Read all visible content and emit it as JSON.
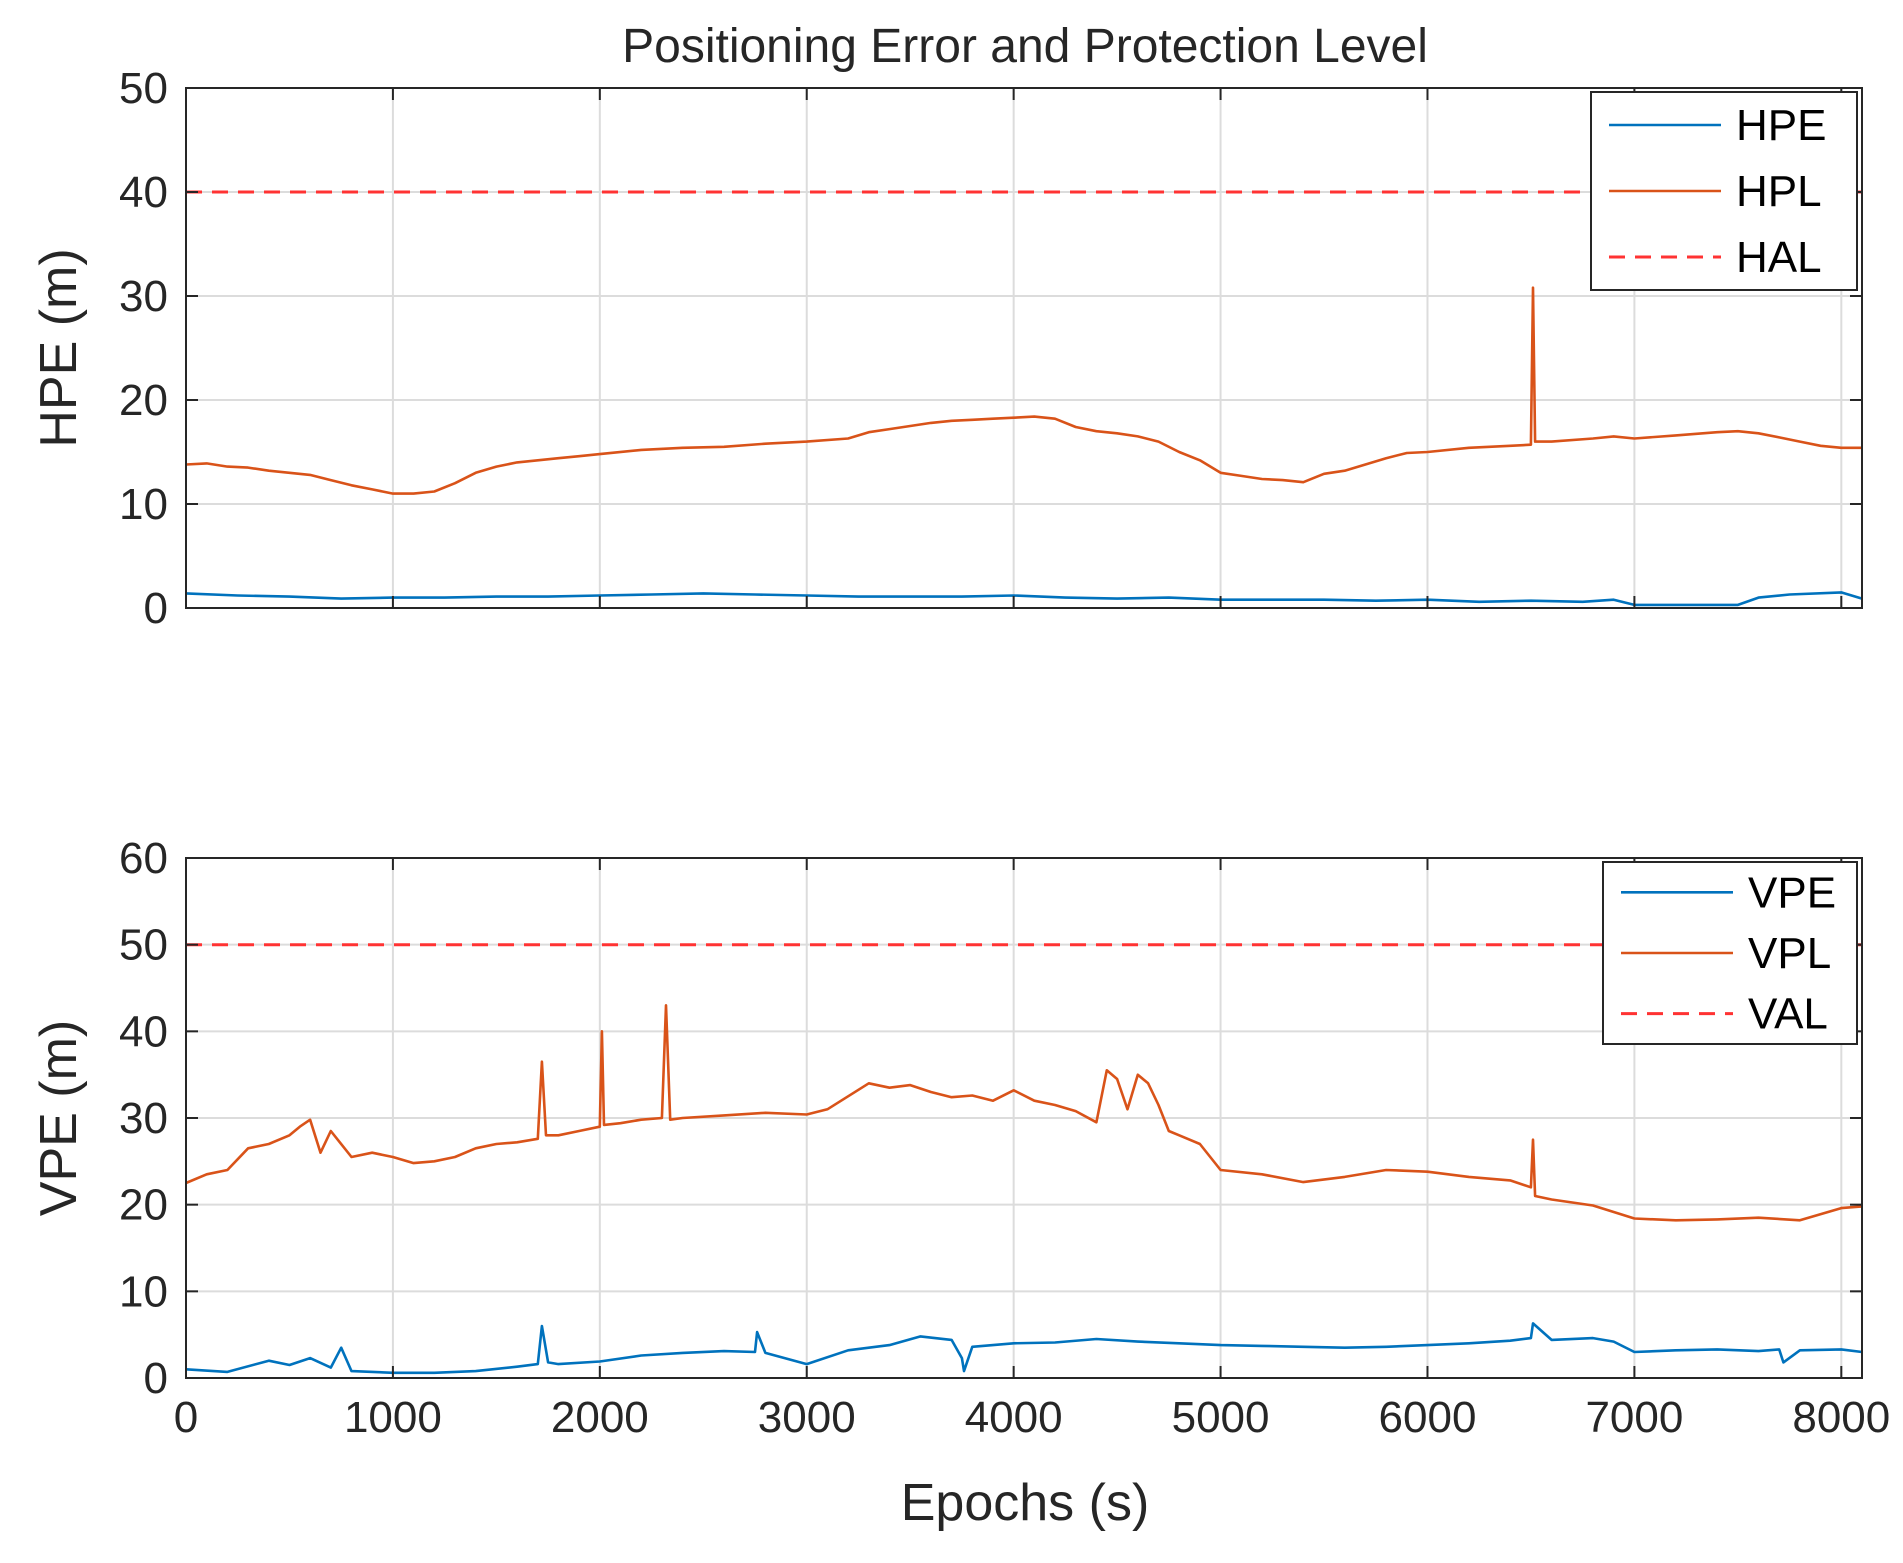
{
  "chart_data": {
    "title": "Positioning Error and Protection Level",
    "xlabel": "Epochs (s)",
    "xlim": [
      0,
      8100
    ],
    "xticks": [
      0,
      1000,
      2000,
      3000,
      4000,
      5000,
      6000,
      7000,
      8000
    ],
    "xtick_labels": [
      "0",
      "1000",
      "2000",
      "3000",
      "4000",
      "5000",
      "6000",
      "7000",
      "8000"
    ],
    "colors": {
      "error": "#0072BD",
      "level": "#D95319",
      "limit": "#FF3333"
    },
    "subplots": [
      {
        "name": "horizontal",
        "type": "line",
        "ylabel": "HPE (m)",
        "ylim": [
          0,
          50
        ],
        "yticks": [
          0,
          10,
          20,
          30,
          40,
          50
        ],
        "ytick_labels": [
          "0",
          "10",
          "20",
          "30",
          "40",
          "50"
        ],
        "legend_position": "top-right",
        "series": [
          {
            "name": "HPE",
            "style": "solid",
            "x": [
              0,
              250,
              500,
              750,
              1000,
              1250,
              1500,
              1750,
              2000,
              2250,
              2500,
              2750,
              3000,
              3250,
              3500,
              3750,
              4000,
              4250,
              4500,
              4750,
              5000,
              5250,
              5500,
              5750,
              6000,
              6250,
              6500,
              6750,
              6900,
              7000,
              7250,
              7500,
              7600,
              7750,
              8000,
              8100
            ],
            "y": [
              1.4,
              1.2,
              1.1,
              0.9,
              1.0,
              1.0,
              1.1,
              1.1,
              1.2,
              1.3,
              1.4,
              1.3,
              1.2,
              1.1,
              1.1,
              1.1,
              1.2,
              1.0,
              0.9,
              1.0,
              0.8,
              0.8,
              0.8,
              0.7,
              0.8,
              0.6,
              0.7,
              0.6,
              0.8,
              0.3,
              0.3,
              0.3,
              1.0,
              1.3,
              1.5,
              0.9
            ]
          },
          {
            "name": "HPL",
            "style": "solid",
            "x": [
              0,
              100,
              200,
              300,
              400,
              500,
              600,
              700,
              800,
              900,
              1000,
              1100,
              1200,
              1300,
              1400,
              1500,
              1600,
              1700,
              1800,
              1900,
              2000,
              2200,
              2400,
              2600,
              2800,
              3000,
              3200,
              3300,
              3400,
              3500,
              3600,
              3700,
              3800,
              3900,
              4000,
              4100,
              4200,
              4300,
              4400,
              4500,
              4600,
              4700,
              4800,
              4900,
              5000,
              5100,
              5200,
              5300,
              5400,
              5500,
              5600,
              5700,
              5800,
              5900,
              6000,
              6200,
              6400,
              6500,
              6510,
              6520,
              6600,
              6800,
              6900,
              7000,
              7200,
              7400,
              7500,
              7600,
              7700,
              7800,
              7900,
              8000,
              8100
            ],
            "y": [
              13.8,
              13.9,
              13.6,
              13.5,
              13.2,
              13.0,
              12.8,
              12.3,
              11.8,
              11.4,
              11.0,
              11.0,
              11.2,
              12.0,
              13.0,
              13.6,
              14.0,
              14.2,
              14.4,
              14.6,
              14.8,
              15.2,
              15.4,
              15.5,
              15.8,
              16.0,
              16.3,
              16.9,
              17.2,
              17.5,
              17.8,
              18.0,
              18.1,
              18.2,
              18.3,
              18.4,
              18.2,
              17.4,
              17.0,
              16.8,
              16.5,
              16.0,
              15.0,
              14.2,
              13.0,
              12.7,
              12.4,
              12.3,
              12.1,
              12.9,
              13.2,
              13.8,
              14.4,
              14.9,
              15.0,
              15.4,
              15.6,
              15.7,
              30.8,
              16.0,
              16.0,
              16.3,
              16.5,
              16.3,
              16.6,
              16.9,
              17.0,
              16.8,
              16.4,
              16.0,
              15.6,
              15.4,
              15.4
            ]
          },
          {
            "name": "HAL",
            "style": "dashed",
            "x": [
              0,
              8100
            ],
            "y": [
              40,
              40
            ]
          }
        ]
      },
      {
        "name": "vertical",
        "type": "line",
        "ylabel": "VPE (m)",
        "ylim": [
          0,
          60
        ],
        "yticks": [
          0,
          10,
          20,
          30,
          40,
          50,
          60
        ],
        "ytick_labels": [
          "0",
          "10",
          "20",
          "30",
          "40",
          "50",
          "60"
        ],
        "legend_position": "top-right",
        "series": [
          {
            "name": "VPE",
            "style": "solid",
            "x": [
              0,
              200,
              400,
              500,
              600,
              700,
              750,
              800,
              1000,
              1200,
              1400,
              1600,
              1700,
              1720,
              1750,
              1800,
              2000,
              2200,
              2400,
              2600,
              2750,
              2760,
              2800,
              3000,
              3200,
              3400,
              3550,
              3700,
              3750,
              3760,
              3800,
              4000,
              4200,
              4400,
              4600,
              4800,
              5000,
              5200,
              5400,
              5600,
              5800,
              6000,
              6200,
              6400,
              6500,
              6510,
              6600,
              6800,
              6900,
              7000,
              7200,
              7400,
              7600,
              7700,
              7720,
              7800,
              8000,
              8100
            ],
            "y": [
              1.0,
              0.7,
              2.0,
              1.5,
              2.3,
              1.2,
              3.5,
              0.8,
              0.6,
              0.6,
              0.8,
              1.3,
              1.6,
              6.0,
              1.8,
              1.6,
              1.9,
              2.6,
              2.9,
              3.1,
              3.0,
              5.3,
              2.9,
              1.6,
              3.2,
              3.8,
              4.8,
              4.4,
              2.3,
              0.8,
              3.6,
              4.0,
              4.1,
              4.5,
              4.2,
              4.0,
              3.8,
              3.7,
              3.6,
              3.5,
              3.6,
              3.8,
              4.0,
              4.3,
              4.6,
              6.3,
              4.4,
              4.6,
              4.2,
              3.0,
              3.2,
              3.3,
              3.1,
              3.3,
              1.8,
              3.2,
              3.3,
              3.0
            ]
          },
          {
            "name": "VPL",
            "style": "solid",
            "x": [
              0,
              100,
              200,
              300,
              400,
              500,
              550,
              600,
              650,
              700,
              800,
              900,
              1000,
              1100,
              1200,
              1300,
              1400,
              1500,
              1600,
              1700,
              1720,
              1740,
              1800,
              1900,
              2000,
              2010,
              2020,
              2100,
              2200,
              2300,
              2320,
              2340,
              2400,
              2600,
              2800,
              3000,
              3100,
              3200,
              3300,
              3400,
              3500,
              3600,
              3700,
              3800,
              3900,
              4000,
              4100,
              4200,
              4300,
              4400,
              4450,
              4500,
              4550,
              4600,
              4650,
              4700,
              4750,
              4800,
              4900,
              5000,
              5200,
              5400,
              5600,
              5800,
              6000,
              6200,
              6400,
              6500,
              6510,
              6520,
              6600,
              6800,
              7000,
              7200,
              7400,
              7600,
              7800,
              8000,
              8100
            ],
            "y": [
              22.5,
              23.5,
              24.0,
              26.5,
              27.0,
              28.0,
              29.0,
              29.8,
              26.0,
              28.5,
              25.5,
              26.0,
              25.5,
              24.8,
              25.0,
              25.5,
              26.5,
              27.0,
              27.2,
              27.6,
              36.5,
              28.0,
              28.0,
              28.5,
              29.0,
              40.0,
              29.2,
              29.4,
              29.8,
              30.0,
              43.0,
              29.8,
              30.0,
              30.3,
              30.6,
              30.4,
              31.0,
              32.5,
              34.0,
              33.5,
              33.8,
              33.0,
              32.4,
              32.6,
              32.0,
              33.2,
              32.0,
              31.5,
              30.8,
              29.5,
              35.5,
              34.5,
              31.0,
              35.0,
              34.0,
              31.5,
              28.5,
              28.0,
              27.0,
              24.0,
              23.5,
              22.6,
              23.2,
              24.0,
              23.8,
              23.2,
              22.8,
              22.0,
              27.5,
              21.0,
              20.6,
              19.9,
              18.4,
              18.2,
              18.3,
              18.5,
              18.2,
              19.6,
              19.8
            ]
          },
          {
            "name": "VAL",
            "style": "dashed",
            "x": [
              0,
              8100
            ],
            "y": [
              50,
              50
            ]
          }
        ]
      }
    ]
  }
}
